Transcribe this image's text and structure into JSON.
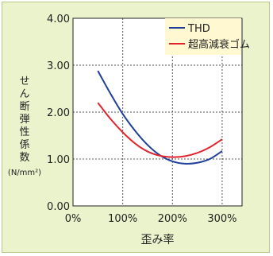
{
  "chart_data": {
    "type": "line",
    "title": "",
    "xlabel": "歪み率",
    "ylabel": "せん断弾性係数",
    "ylabel_unit": "(N/mm²)",
    "xlim": [
      0,
      3.4
    ],
    "ylim": [
      0,
      4
    ],
    "x_ticks": [
      0,
      1,
      2,
      3
    ],
    "x_tick_labels": [
      "0%",
      "100%",
      "200%",
      "300%"
    ],
    "y_ticks": [
      0,
      1,
      2,
      3,
      4
    ],
    "y_tick_labels": [
      "0.00",
      "1.00",
      "2.00",
      "3.00",
      "4.00"
    ],
    "grid": true,
    "legend_position": "top-right",
    "series": [
      {
        "name": "THD",
        "color": "#1f3f99",
        "x": [
          0.5,
          0.75,
          1.0,
          1.25,
          1.5,
          1.75,
          2.0,
          2.25,
          2.5,
          2.75,
          3.0
        ],
        "y": [
          2.88,
          2.4,
          1.96,
          1.6,
          1.3,
          1.08,
          0.95,
          0.9,
          0.92,
          1.0,
          1.17
        ]
      },
      {
        "name": "超高減衰ゴム",
        "color": "#e0252f",
        "x": [
          0.5,
          0.75,
          1.0,
          1.25,
          1.5,
          1.75,
          2.0,
          2.25,
          2.5,
          2.75,
          3.0
        ],
        "y": [
          2.2,
          1.86,
          1.57,
          1.33,
          1.16,
          1.07,
          1.04,
          1.06,
          1.13,
          1.25,
          1.42
        ]
      }
    ]
  }
}
